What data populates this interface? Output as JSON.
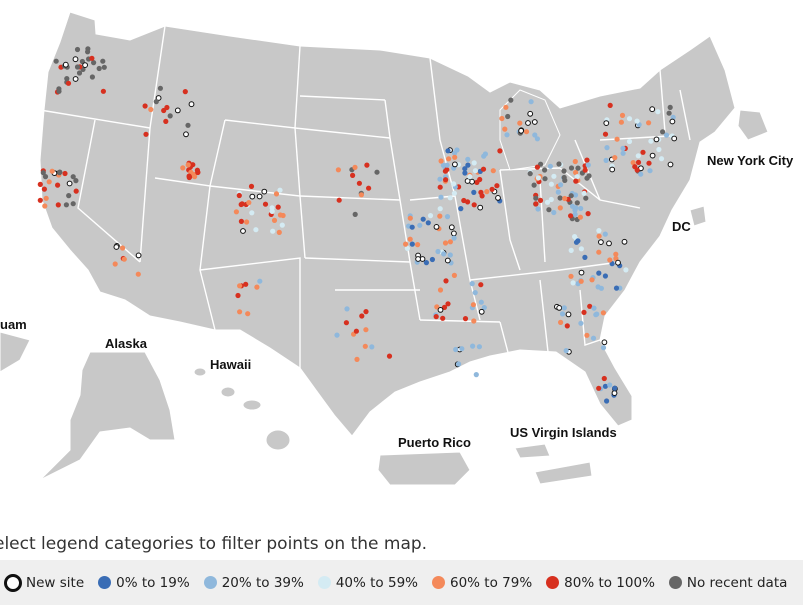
{
  "labels": {
    "guam": "uam",
    "alaska": "Alaska",
    "hawaii": "Hawaii",
    "puerto_rico": "Puerto Rico",
    "usvi": "US Virgin Islands",
    "nyc": "New York City",
    "dc": "DC"
  },
  "instruction": "elect legend categories to filter points on the map.",
  "legend": [
    {
      "key": "new",
      "label": "New site",
      "color": "#ffffff"
    },
    {
      "key": "c0",
      "label": "0% to 19%",
      "color": "#3a6db5"
    },
    {
      "key": "c20",
      "label": "20% to 39%",
      "color": "#8fb8dc"
    },
    {
      "key": "c40",
      "label": "40% to 59%",
      "color": "#d4ebf3"
    },
    {
      "key": "c60",
      "label": "60% to 79%",
      "color": "#f4895a"
    },
    {
      "key": "c80",
      "label": "80% to 100%",
      "color": "#d7301f"
    },
    {
      "key": "nd",
      "label": "No recent data",
      "color": "#666666"
    }
  ]
}
